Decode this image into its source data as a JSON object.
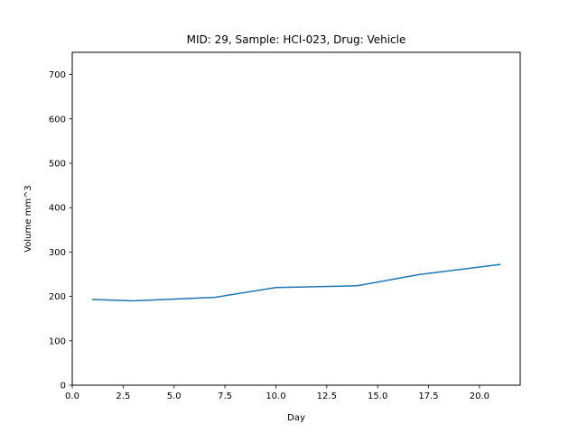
{
  "chart_data": {
    "type": "line",
    "title": "MID: 29, Sample: HCI-023, Drug: Vehicle",
    "xlabel": "Day",
    "ylabel": "Volume mm^3",
    "xlim": [
      0.0,
      22.0
    ],
    "ylim": [
      0,
      750
    ],
    "xticks": [
      "0.0",
      "2.5",
      "5.0",
      "7.5",
      "10.0",
      "12.5",
      "15.0",
      "17.5",
      "20.0"
    ],
    "xtick_values": [
      0,
      2.5,
      5,
      7.5,
      10,
      12.5,
      15,
      17.5,
      20
    ],
    "yticks": [
      "0",
      "100",
      "200",
      "300",
      "400",
      "500",
      "600",
      "700"
    ],
    "ytick_values": [
      0,
      100,
      200,
      300,
      400,
      500,
      600,
      700
    ],
    "grid": false,
    "series": [
      {
        "color": "#1f77b4",
        "x": [
          1,
          3,
          7,
          10,
          14,
          17,
          21
        ],
        "y": [
          193,
          190,
          198,
          220,
          224,
          249,
          272
        ]
      }
    ]
  }
}
